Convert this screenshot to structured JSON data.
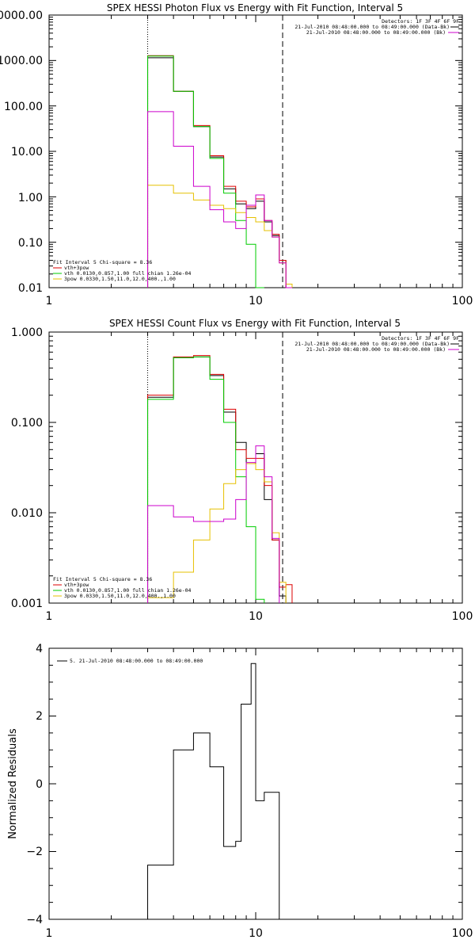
{
  "panels": [
    {
      "title": "SPEX HESSI Photon Flux vs Energy with Fit Function, Interval 5",
      "x_ticks": [
        "1",
        "10",
        "100"
      ],
      "y_ticks": [
        "0000.00",
        "1000.00",
        "100.00",
        "10.00",
        "1.00",
        "0.10",
        "0.01"
      ],
      "top_right_lines": [
        "Detectors: 1F 3F 4F 6F 9F",
        "21-Jul-2010 08:48:00.000 to 08:49:00.000 (Data-Bk)",
        "21-Jul-2010 08:48:00.000 to 08:49:00.000 (Bk)"
      ],
      "fit_legend": [
        "Fit Interval  5    Chi-square = 8.36",
        "vth+3pow",
        "vth 0.0130,0.857,1.00   full chian 1.26e-04",
        "3pow 0.0330,1.50,11.0,12.0,400.,1.00"
      ]
    },
    {
      "title": "SPEX HESSI Count Flux vs Energy with Fit Function, Interval 5",
      "x_ticks": [
        "1",
        "10",
        "100"
      ],
      "y_ticks": [
        "1.000",
        "0.100",
        "0.010",
        "0.001"
      ],
      "top_right_lines": [
        "Detectors: 1F 3F 4F 6F 9F",
        "21-Jul-2010 08:48:00.000 to 08:49:00.000 (Data-Bk)",
        "21-Jul-2010 08:48:00.000 to 08:49:00.000 (Bk)"
      ],
      "fit_legend": [
        "Fit Interval  5    Chi-square = 8.36",
        "vth+3pow",
        "vth 0.0130,0.857,1.00   full chian 1.26e-04",
        "3pow 0.0330,1.50,11.0,12.0,400.,1.00"
      ]
    },
    {
      "title": "",
      "x_ticks": [
        "1",
        "10",
        "100"
      ],
      "y_ticks": [
        "4",
        "2",
        "0",
        "−2",
        "−4"
      ],
      "ylabel": "Normalized Residuals",
      "legend": "5. 21-Jul-2010 08:48:00.000 to 08:49:00.000"
    }
  ],
  "colors": {
    "data": "#000000",
    "fit_total": "#dd0000",
    "vth": "#00cc00",
    "pow": "#e6c000",
    "background": "#cc00cc"
  },
  "chart_data": [
    {
      "type": "line",
      "title": "SPEX HESSI Photon Flux vs Energy with Fit Function, Interval 5",
      "xlabel": "",
      "ylabel": "",
      "xscale": "log",
      "yscale": "log",
      "xlim": [
        1,
        100
      ],
      "ylim": [
        0.01,
        10000
      ],
      "vlines": [
        3.0,
        13.5
      ],
      "edges": [
        3.0,
        4.0,
        5.0,
        6.0,
        7.0,
        8.0,
        9.0,
        10.0,
        11.0,
        12.0,
        13.0,
        14.0,
        15.0
      ],
      "series": [
        {
          "name": "Data-Bk",
          "color_key": "data",
          "values": [
            1150,
            210,
            35,
            7.5,
            1.5,
            0.7,
            0.55,
            0.8,
            0.28,
            0.14,
            0.04,
            0.01
          ]
        },
        {
          "name": "",
          "color_key": "fit_total",
          "values": [
            1280,
            210,
            37,
            8.0,
            1.7,
            0.8,
            0.6,
            0.9,
            0.3,
            0.15,
            0.04,
            0.01
          ]
        },
        {
          "name": "vth+3pow",
          "color_key": "vth",
          "values": [
            1250,
            210,
            35,
            7.0,
            1.2,
            0.3,
            0.09,
            0.005,
            null,
            null,
            null,
            null
          ]
        },
        {
          "name": "3pow",
          "color_key": "pow",
          "values": [
            1.8,
            1.2,
            0.85,
            0.65,
            0.55,
            0.45,
            0.35,
            0.28,
            0.18,
            0.13,
            0.035,
            0.012
          ]
        },
        {
          "name": "Bk",
          "color_key": "background",
          "values": [
            75,
            13,
            1.7,
            0.52,
            0.28,
            0.2,
            0.65,
            1.1,
            0.3,
            0.13,
            0.035,
            0.01
          ]
        }
      ]
    },
    {
      "type": "line",
      "title": "SPEX HESSI Count Flux vs Energy with Fit Function, Interval 5",
      "xlabel": "",
      "ylabel": "",
      "xscale": "log",
      "yscale": "log",
      "xlim": [
        1,
        100
      ],
      "ylim": [
        0.001,
        1.0
      ],
      "vlines": [
        3.0,
        13.5
      ],
      "edges": [
        3.0,
        4.0,
        5.0,
        6.0,
        7.0,
        8.0,
        9.0,
        10.0,
        11.0,
        12.0,
        13.0,
        14.0,
        15.0
      ],
      "series": [
        {
          "name": "Data-Bk",
          "color_key": "data",
          "values": [
            0.19,
            0.52,
            0.53,
            0.33,
            0.13,
            0.06,
            0.035,
            0.045,
            0.014,
            0.005,
            0.0012,
            null
          ]
        },
        {
          "name": "",
          "color_key": "fit_total",
          "values": [
            0.2,
            0.53,
            0.55,
            0.34,
            0.14,
            0.05,
            0.04,
            0.04,
            0.02,
            0.005,
            0.0015,
            0.0016
          ]
        },
        {
          "name": "vth+3pow",
          "color_key": "vth",
          "values": [
            0.18,
            0.52,
            0.53,
            0.3,
            0.1,
            0.025,
            0.007,
            0.0011,
            null,
            null,
            null,
            null
          ]
        },
        {
          "name": "3pow",
          "color_key": "pow",
          "values": [
            0.00115,
            0.0022,
            0.005,
            0.011,
            0.021,
            0.03,
            0.035,
            0.03,
            0.022,
            0.006,
            0.0017,
            null
          ]
        },
        {
          "name": "Bk",
          "color_key": "background",
          "values": [
            0.012,
            0.009,
            0.008,
            0.008,
            0.0085,
            0.014,
            0.036,
            0.055,
            0.025,
            0.0052,
            null,
            null
          ]
        }
      ]
    },
    {
      "type": "line",
      "title": "",
      "xlabel": "",
      "ylabel": "Normalized Residuals",
      "xscale": "log",
      "yscale": "linear",
      "xlim": [
        1,
        100
      ],
      "ylim": [
        -4,
        4
      ],
      "edges": [
        3.0,
        3.5,
        4.0,
        5.0,
        6.0,
        7.0,
        7.5,
        8.0,
        8.5,
        9.0,
        9.5,
        10.0,
        11.0,
        12.0,
        13.0
      ],
      "series": [
        {
          "name": "5. 21-Jul-2010 08:48:00.000 to 08:49:00.000",
          "color_key": "data",
          "values": [
            -2.4,
            -2.4,
            1.0,
            1.5,
            0.5,
            -1.85,
            -1.85,
            -1.7,
            2.35,
            2.35,
            3.55,
            -0.5,
            -0.25,
            -0.25
          ]
        }
      ]
    }
  ]
}
